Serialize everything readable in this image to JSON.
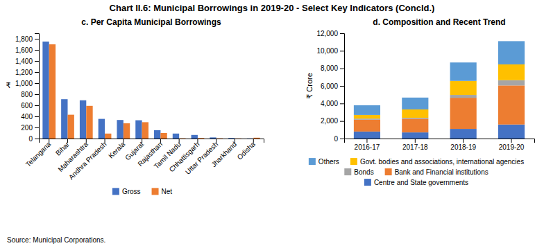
{
  "title": "Chart II.6: Municipal Borrowings in 2019-20 - Select Key Indicators (Concld.)",
  "annotations": [
    "Source: Municipal Corporations."
  ],
  "chart_data": [
    {
      "type": "bar",
      "title": "c. Per Capita Municipal Borrowings",
      "ylabel": "₹",
      "categories": [
        "Telangana",
        "Bihar",
        "Maharashtra",
        "Andhra Pradesh",
        "Kerala",
        "Gujarat",
        "Rajasthan",
        "Tamil Nadu",
        "Chhattisgarh",
        "Uttar Pradesh",
        "Jharkhand",
        "Odisha"
      ],
      "series": [
        {
          "name": "Gross",
          "color": "#4472c4",
          "values": [
            1750,
            710,
            690,
            355,
            335,
            330,
            150,
            90,
            65,
            20,
            10,
            3
          ]
        },
        {
          "name": "Net",
          "color": "#ed7d31",
          "values": [
            1700,
            430,
            590,
            90,
            275,
            295,
            100,
            5,
            10,
            5,
            3,
            15
          ]
        }
      ],
      "ylim": [
        0,
        1900
      ],
      "yticks": [
        0,
        200,
        400,
        600,
        800,
        {
          "value": 1000,
          "label": "1,000"
        },
        {
          "value": 1200,
          "label": "1,200"
        },
        {
          "value": 1400,
          "label": "1,400"
        },
        {
          "value": 1600,
          "label": "1,600"
        },
        {
          "value": 1800,
          "label": "1,800"
        }
      ],
      "legend": "bottom"
    },
    {
      "type": "bar",
      "title": "d. Composition and Recent Trend",
      "ylabel": "₹ Crore",
      "categories": [
        "2016-17",
        "2017-18",
        "2018-19",
        "2019-20"
      ],
      "stacked": true,
      "series": [
        {
          "name": "Centre and State governments",
          "color": "#4472c4",
          "values": [
            800,
            700,
            1100,
            1600
          ]
        },
        {
          "name": "Bank and Financial institutions",
          "color": "#ed7d31",
          "values": [
            1350,
            1550,
            3550,
            4450
          ]
        },
        {
          "name": "Bonds",
          "color": "#a5a5a5",
          "values": [
            120,
            120,
            320,
            600
          ]
        },
        {
          "name": "Govt. bodies and associations, international agencies",
          "color": "#ffc000",
          "values": [
            420,
            950,
            1600,
            1800
          ]
        },
        {
          "name": "Others",
          "color": "#5b9bd5",
          "values": [
            1100,
            1350,
            2100,
            2650
          ]
        }
      ],
      "ylim": [
        0,
        12000
      ],
      "yticks": [
        0,
        {
          "value": 2000,
          "label": "2,000"
        },
        {
          "value": 4000,
          "label": "4,000"
        },
        {
          "value": 6000,
          "label": "6,000"
        },
        {
          "value": 8000,
          "label": "8,000"
        },
        {
          "value": 10000,
          "label": "10,000"
        },
        {
          "value": 12000,
          "label": "12,000"
        }
      ],
      "legend": "bottom"
    }
  ]
}
